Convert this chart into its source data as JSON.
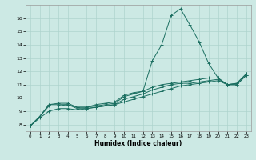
{
  "xlabel": "Humidex (Indice chaleur)",
  "bg_color": "#cce9e4",
  "grid_color": "#aed4ce",
  "line_color": "#1a6e60",
  "xlim": [
    -0.5,
    23.5
  ],
  "ylim": [
    7.5,
    17.0
  ],
  "xticks": [
    0,
    1,
    2,
    3,
    4,
    5,
    6,
    7,
    8,
    9,
    10,
    11,
    12,
    13,
    14,
    15,
    16,
    17,
    18,
    19,
    20,
    21,
    22,
    23
  ],
  "yticks": [
    8,
    9,
    10,
    11,
    12,
    13,
    14,
    15,
    16
  ],
  "series": [
    {
      "x": [
        0,
        1,
        2,
        3,
        4,
        5,
        6,
        7,
        8,
        9,
        10,
        11,
        12,
        13,
        14,
        15,
        16,
        17,
        18,
        19,
        20,
        21,
        22,
        23
      ],
      "y": [
        7.9,
        8.6,
        9.5,
        9.6,
        9.6,
        9.3,
        9.3,
        9.5,
        9.6,
        9.7,
        10.2,
        10.4,
        10.5,
        12.8,
        14.0,
        16.2,
        16.7,
        15.5,
        14.2,
        12.6,
        11.5,
        11.0,
        11.1,
        11.8
      ]
    },
    {
      "x": [
        0,
        1,
        2,
        3,
        4,
        5,
        6,
        7,
        8,
        9,
        10,
        11,
        12,
        13,
        14,
        15,
        16,
        17,
        18,
        19,
        20,
        21,
        22,
        23
      ],
      "y": [
        7.9,
        8.6,
        9.5,
        9.5,
        9.5,
        9.3,
        9.3,
        9.4,
        9.5,
        9.6,
        10.1,
        10.3,
        10.5,
        10.8,
        11.0,
        11.1,
        11.2,
        11.3,
        11.4,
        11.5,
        11.5,
        11.0,
        11.1,
        11.8
      ]
    },
    {
      "x": [
        0,
        1,
        2,
        3,
        4,
        5,
        6,
        7,
        8,
        9,
        10,
        11,
        12,
        13,
        14,
        15,
        16,
        17,
        18,
        19,
        20,
        21,
        22,
        23
      ],
      "y": [
        7.9,
        8.6,
        9.4,
        9.4,
        9.5,
        9.2,
        9.2,
        9.3,
        9.4,
        9.5,
        9.9,
        10.1,
        10.3,
        10.6,
        10.8,
        11.0,
        11.1,
        11.1,
        11.2,
        11.3,
        11.4,
        11.0,
        11.0,
        11.7
      ]
    },
    {
      "x": [
        0,
        1,
        2,
        3,
        4,
        5,
        6,
        7,
        8,
        9,
        10,
        11,
        12,
        13,
        14,
        15,
        16,
        17,
        18,
        19,
        20,
        21,
        22,
        23
      ],
      "y": [
        7.9,
        8.5,
        9.0,
        9.2,
        9.2,
        9.1,
        9.2,
        9.3,
        9.4,
        9.5,
        9.7,
        9.9,
        10.1,
        10.3,
        10.5,
        10.7,
        10.9,
        11.0,
        11.1,
        11.2,
        11.3,
        11.0,
        11.0,
        11.7
      ]
    }
  ]
}
